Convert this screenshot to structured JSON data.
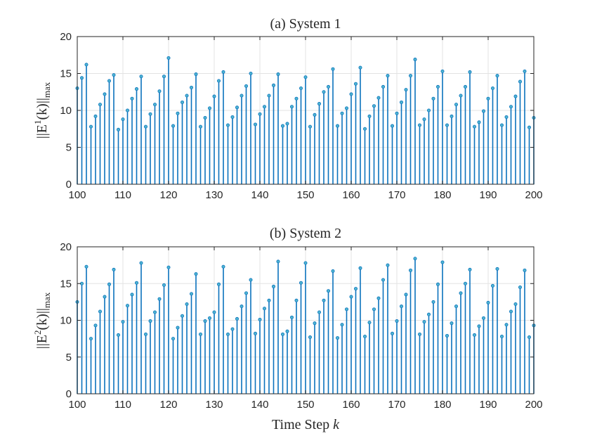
{
  "chart_data": [
    {
      "type": "stem",
      "title": "(a) System 1",
      "ylabel_main": "||E",
      "ylabel_sup": "1",
      "ylabel_rest": "(k)||",
      "ylabel_sub": "max",
      "xlim": [
        100,
        200
      ],
      "ylim": [
        0,
        20
      ],
      "xticks": [
        100,
        110,
        120,
        130,
        140,
        150,
        160,
        170,
        180,
        190,
        200
      ],
      "yticks": [
        0,
        5,
        10,
        15,
        20
      ],
      "grid": true,
      "x": [
        100,
        101,
        102,
        103,
        104,
        105,
        106,
        107,
        108,
        109,
        110,
        111,
        112,
        113,
        114,
        115,
        116,
        117,
        118,
        119,
        120,
        121,
        122,
        123,
        124,
        125,
        126,
        127,
        128,
        129,
        130,
        131,
        132,
        133,
        134,
        135,
        136,
        137,
        138,
        139,
        140,
        141,
        142,
        143,
        144,
        145,
        146,
        147,
        148,
        149,
        150,
        151,
        152,
        153,
        154,
        155,
        156,
        157,
        158,
        159,
        160,
        161,
        162,
        163,
        164,
        165,
        166,
        167,
        168,
        169,
        170,
        171,
        172,
        173,
        174,
        175,
        176,
        177,
        178,
        179,
        180,
        181,
        182,
        183,
        184,
        185,
        186,
        187,
        188,
        189,
        190,
        191,
        192,
        193,
        194,
        195,
        196,
        197,
        198,
        199,
        200
      ],
      "values": [
        13.0,
        14.4,
        16.2,
        7.8,
        9.2,
        10.8,
        12.2,
        14.0,
        14.8,
        7.4,
        8.8,
        10.0,
        11.6,
        12.9,
        14.6,
        7.8,
        9.5,
        10.8,
        12.6,
        14.6,
        17.1,
        7.9,
        9.6,
        11.1,
        12.0,
        13.1,
        14.9,
        7.8,
        9.0,
        10.3,
        11.9,
        14.0,
        15.2,
        8.0,
        9.1,
        10.4,
        12.0,
        13.3,
        15.0,
        8.1,
        9.5,
        10.5,
        12.0,
        13.4,
        14.9,
        7.9,
        8.2,
        10.5,
        11.6,
        13.0,
        14.5,
        7.8,
        9.4,
        10.9,
        12.5,
        13.2,
        15.6,
        7.9,
        9.6,
        10.3,
        12.2,
        13.6,
        15.8,
        7.5,
        9.2,
        10.6,
        11.7,
        13.2,
        14.7,
        7.9,
        9.6,
        11.1,
        12.8,
        14.7,
        16.9,
        8.0,
        8.8,
        10.0,
        11.6,
        13.2,
        15.3,
        8.0,
        9.2,
        10.8,
        12.0,
        13.2,
        15.2,
        7.8,
        8.4,
        9.9,
        11.6,
        13.0,
        14.7,
        8.0,
        9.1,
        10.5,
        11.9,
        13.9,
        15.3,
        7.7,
        9.0
      ]
    },
    {
      "type": "stem",
      "title": "(b) System 2",
      "ylabel_main": "||E",
      "ylabel_sup": "2",
      "ylabel_rest": "(k)||",
      "ylabel_sub": "max",
      "xlabel_main": "Time Step ",
      "xlabel_var": "k",
      "xlim": [
        100,
        200
      ],
      "ylim": [
        0,
        20
      ],
      "xticks": [
        100,
        110,
        120,
        130,
        140,
        150,
        160,
        170,
        180,
        190,
        200
      ],
      "yticks": [
        0,
        5,
        10,
        15,
        20
      ],
      "grid": true,
      "x": [
        100,
        101,
        102,
        103,
        104,
        105,
        106,
        107,
        108,
        109,
        110,
        111,
        112,
        113,
        114,
        115,
        116,
        117,
        118,
        119,
        120,
        121,
        122,
        123,
        124,
        125,
        126,
        127,
        128,
        129,
        130,
        131,
        132,
        133,
        134,
        135,
        136,
        137,
        138,
        139,
        140,
        141,
        142,
        143,
        144,
        145,
        146,
        147,
        148,
        149,
        150,
        151,
        152,
        153,
        154,
        155,
        156,
        157,
        158,
        159,
        160,
        161,
        162,
        163,
        164,
        165,
        166,
        167,
        168,
        169,
        170,
        171,
        172,
        173,
        174,
        175,
        176,
        177,
        178,
        179,
        180,
        181,
        182,
        183,
        184,
        185,
        186,
        187,
        188,
        189,
        190,
        191,
        192,
        193,
        194,
        195,
        196,
        197,
        198,
        199,
        200
      ],
      "values": [
        12.5,
        15.0,
        17.3,
        7.5,
        9.3,
        11.2,
        13.2,
        14.9,
        16.9,
        8.0,
        9.8,
        12.0,
        13.5,
        15.1,
        17.8,
        8.1,
        9.9,
        11.1,
        12.9,
        14.8,
        17.2,
        7.5,
        9.0,
        10.6,
        12.2,
        13.6,
        16.3,
        8.1,
        9.9,
        10.3,
        11.1,
        14.9,
        17.3,
        8.1,
        8.8,
        10.2,
        11.9,
        13.7,
        15.5,
        8.2,
        10.1,
        11.6,
        12.7,
        14.6,
        18.0,
        8.1,
        8.5,
        10.4,
        12.7,
        15.1,
        17.8,
        7.7,
        9.6,
        11.1,
        12.7,
        14.0,
        16.7,
        7.6,
        9.4,
        11.5,
        13.2,
        14.3,
        17.1,
        7.8,
        9.7,
        11.5,
        13.0,
        15.5,
        17.5,
        8.2,
        9.9,
        11.9,
        13.5,
        16.8,
        18.4,
        8.1,
        9.8,
        10.8,
        12.5,
        14.9,
        17.9,
        7.9,
        9.6,
        11.9,
        13.7,
        15.0,
        16.9,
        8.0,
        9.2,
        10.3,
        12.4,
        14.7,
        17.0,
        7.8,
        9.4,
        11.2,
        12.2,
        14.5,
        16.8,
        7.7,
        9.3
      ]
    }
  ]
}
